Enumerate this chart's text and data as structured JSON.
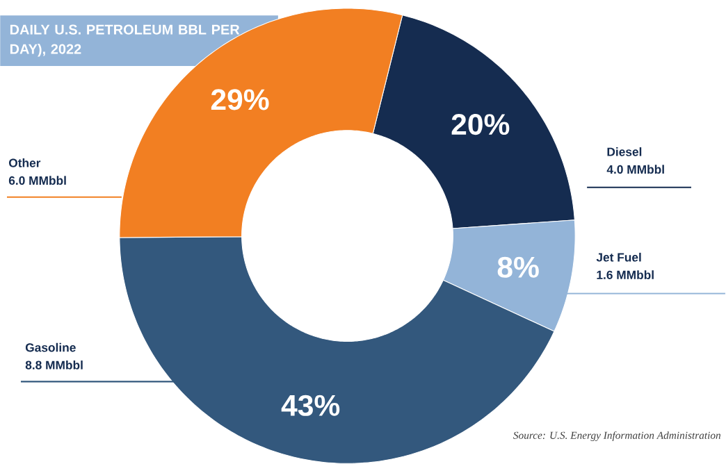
{
  "chart_data": {
    "type": "donut",
    "title": "DAILY U.S. PETROLEUM BBL PER DAY), 2022",
    "categories": [
      "Diesel",
      "Jet Fuel",
      "Gasoline",
      "Other"
    ],
    "values": [
      20,
      8,
      43,
      29
    ],
    "value_labels": [
      "20%",
      "8%",
      "43%",
      "29%"
    ],
    "colors": [
      "#152c50",
      "#93b4d8",
      "#33587d",
      "#f27f22"
    ],
    "annotations": [
      "4.0 MMbbl",
      "1.6 MMbbl",
      "8.8 MMbbl",
      "6.0 MMbbl",
      "Source: U.S. Energy Information Administration"
    ]
  }
}
